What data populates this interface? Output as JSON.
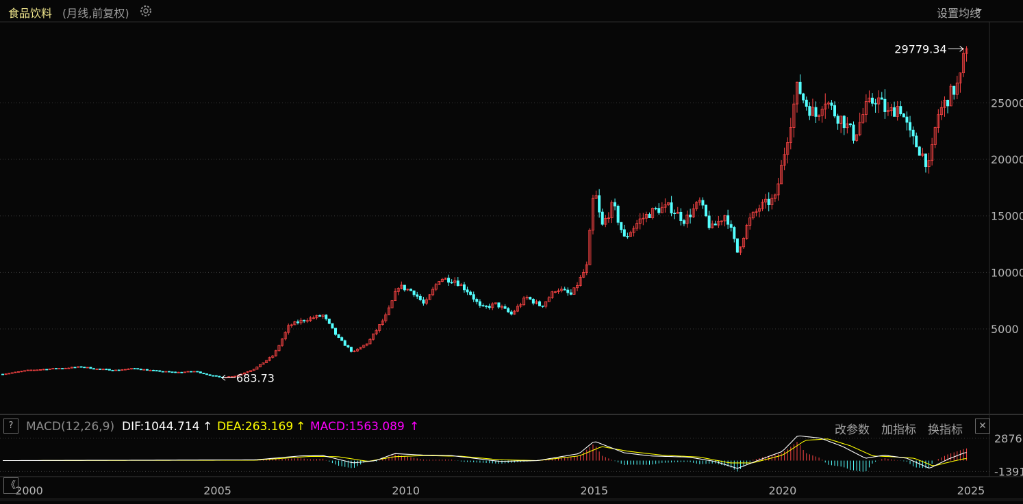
{
  "header": {
    "title": "食品饮料",
    "subtitle": "(月线,前复权)",
    "set_ma_label": "设置均线"
  },
  "macd_panel": {
    "help_label": "?",
    "name": "MACD(12,26,9)",
    "dif": "DIF:1044.714",
    "dea": "DEA:263.169",
    "macd": "MACD:1563.089",
    "arrow": "↑",
    "buttons": [
      "改参数",
      "加指标",
      "换指标"
    ],
    "close_label": "✕",
    "nav_label": "《"
  },
  "colors": {
    "up": "#ff4545",
    "down": "#54ffff",
    "dif_line": "#ffffff",
    "dea_line": "#ffff00",
    "macd_text": "#ff00ff",
    "grid": "#3a3a3a",
    "background": "#070707"
  },
  "chart_data": [
    {
      "type": "candlestick",
      "title": "食品饮料",
      "subtitle": "(月线,前复权)",
      "x_ticks": [
        "2000",
        "2005",
        "2010",
        "2015",
        "2020",
        "2025"
      ],
      "y_ticks": [
        5000,
        10000,
        15000,
        20000,
        25000
      ],
      "y_tick_labels": [
        "5000",
        "10000",
        "15000",
        "20000",
        "25000"
      ],
      "ylim": [
        -2200,
        31800
      ],
      "xlim": [
        1999.3,
        2025.4
      ],
      "grid": true,
      "annotations": [
        {
          "label": "29779.34",
          "x": 2024.83,
          "y": 29779.34,
          "kind": "max"
        },
        {
          "label": "683.73",
          "x": 2005.08,
          "y": 683.73,
          "kind": "min"
        }
      ],
      "path": [
        [
          1999.3,
          1000
        ],
        [
          2000.0,
          1350
        ],
        [
          2000.5,
          1450
        ],
        [
          2001.0,
          1550
        ],
        [
          2001.4,
          1650
        ],
        [
          2001.8,
          1450
        ],
        [
          2002.3,
          1350
        ],
        [
          2002.8,
          1500
        ],
        [
          2003.3,
          1300
        ],
        [
          2003.9,
          1150
        ],
        [
          2004.4,
          1250
        ],
        [
          2004.8,
          900
        ],
        [
          2005.1,
          700
        ],
        [
          2005.5,
          850
        ],
        [
          2006.0,
          1500
        ],
        [
          2006.5,
          2700
        ],
        [
          2006.9,
          5300
        ],
        [
          2007.3,
          5800
        ],
        [
          2007.8,
          6200
        ],
        [
          2008.2,
          4200
        ],
        [
          2008.6,
          2900
        ],
        [
          2009.0,
          3800
        ],
        [
          2009.5,
          6300
        ],
        [
          2009.8,
          8800
        ],
        [
          2010.2,
          8300
        ],
        [
          2010.5,
          7100
        ],
        [
          2010.9,
          9500
        ],
        [
          2011.3,
          9300
        ],
        [
          2011.7,
          8200
        ],
        [
          2012.0,
          6800
        ],
        [
          2012.4,
          7200
        ],
        [
          2012.8,
          6300
        ],
        [
          2013.2,
          7800
        ],
        [
          2013.6,
          7000
        ],
        [
          2014.0,
          8600
        ],
        [
          2014.4,
          8000
        ],
        [
          2014.8,
          10500
        ],
        [
          2015.0,
          17500
        ],
        [
          2015.2,
          14000
        ],
        [
          2015.5,
          16000
        ],
        [
          2015.8,
          13000
        ],
        [
          2016.2,
          14600
        ],
        [
          2016.6,
          15500
        ],
        [
          2017.0,
          15800
        ],
        [
          2017.4,
          14600
        ],
        [
          2017.8,
          16200
        ],
        [
          2018.1,
          13800
        ],
        [
          2018.5,
          15200
        ],
        [
          2018.8,
          11800
        ],
        [
          2019.1,
          14500
        ],
        [
          2019.4,
          15800
        ],
        [
          2019.8,
          16500
        ],
        [
          2020.1,
          21500
        ],
        [
          2020.4,
          26500
        ],
        [
          2020.6,
          25000
        ],
        [
          2020.9,
          23800
        ],
        [
          2021.1,
          25500
        ],
        [
          2021.4,
          24000
        ],
        [
          2021.6,
          23500
        ],
        [
          2021.9,
          22000
        ],
        [
          2022.2,
          24500
        ],
        [
          2022.5,
          25500
        ],
        [
          2022.8,
          24000
        ],
        [
          2023.1,
          24800
        ],
        [
          2023.4,
          22000
        ],
        [
          2023.7,
          20500
        ],
        [
          2023.9,
          19300
        ],
        [
          2024.1,
          23800
        ],
        [
          2024.4,
          25500
        ],
        [
          2024.7,
          26800
        ],
        [
          2024.85,
          29779.34
        ]
      ]
    },
    {
      "type": "macd",
      "title": "MACD(12,26,9)",
      "series_names": [
        "DIF",
        "DEA",
        "MACD"
      ],
      "current_values": {
        "DIF": 1044.714,
        "DEA": 263.169,
        "MACD": 1563.089
      },
      "y_tick_labels": [
        "2876",
        "-1391"
      ],
      "y_ticks": [
        2876,
        -1391
      ],
      "ylim": [
        -1800,
        3300
      ],
      "dif_path": [
        [
          1999.3,
          0
        ],
        [
          2006.0,
          100
        ],
        [
          2007.2,
          600
        ],
        [
          2007.8,
          650
        ],
        [
          2008.6,
          -300
        ],
        [
          2009.2,
          0
        ],
        [
          2009.7,
          900
        ],
        [
          2010.5,
          700
        ],
        [
          2011.2,
          650
        ],
        [
          2012.5,
          -100
        ],
        [
          2013.5,
          0
        ],
        [
          2014.6,
          900
        ],
        [
          2015.0,
          2500
        ],
        [
          2015.8,
          1000
        ],
        [
          2016.5,
          600
        ],
        [
          2017.5,
          450
        ],
        [
          2018.2,
          -100
        ],
        [
          2018.8,
          -1000
        ],
        [
          2019.5,
          300
        ],
        [
          2020.0,
          1200
        ],
        [
          2020.4,
          3200
        ],
        [
          2021.0,
          2900
        ],
        [
          2021.6,
          1800
        ],
        [
          2022.2,
          300
        ],
        [
          2022.7,
          700
        ],
        [
          2023.3,
          300
        ],
        [
          2023.9,
          -1000
        ],
        [
          2024.4,
          200
        ],
        [
          2024.85,
          1044.714
        ]
      ],
      "dea_path": [
        [
          1999.3,
          0
        ],
        [
          2006.0,
          50
        ],
        [
          2007.5,
          550
        ],
        [
          2008.2,
          500
        ],
        [
          2009.0,
          -100
        ],
        [
          2009.7,
          500
        ],
        [
          2010.5,
          650
        ],
        [
          2011.5,
          550
        ],
        [
          2012.5,
          100
        ],
        [
          2013.5,
          0
        ],
        [
          2014.6,
          600
        ],
        [
          2015.2,
          1800
        ],
        [
          2015.9,
          1200
        ],
        [
          2016.8,
          700
        ],
        [
          2017.8,
          450
        ],
        [
          2018.6,
          -300
        ],
        [
          2019.2,
          -300
        ],
        [
          2020.0,
          700
        ],
        [
          2020.6,
          2600
        ],
        [
          2021.2,
          2800
        ],
        [
          2021.8,
          1900
        ],
        [
          2022.4,
          600
        ],
        [
          2022.9,
          500
        ],
        [
          2023.5,
          300
        ],
        [
          2024.0,
          -700
        ],
        [
          2024.5,
          -100
        ],
        [
          2024.85,
          263.169
        ]
      ]
    }
  ]
}
